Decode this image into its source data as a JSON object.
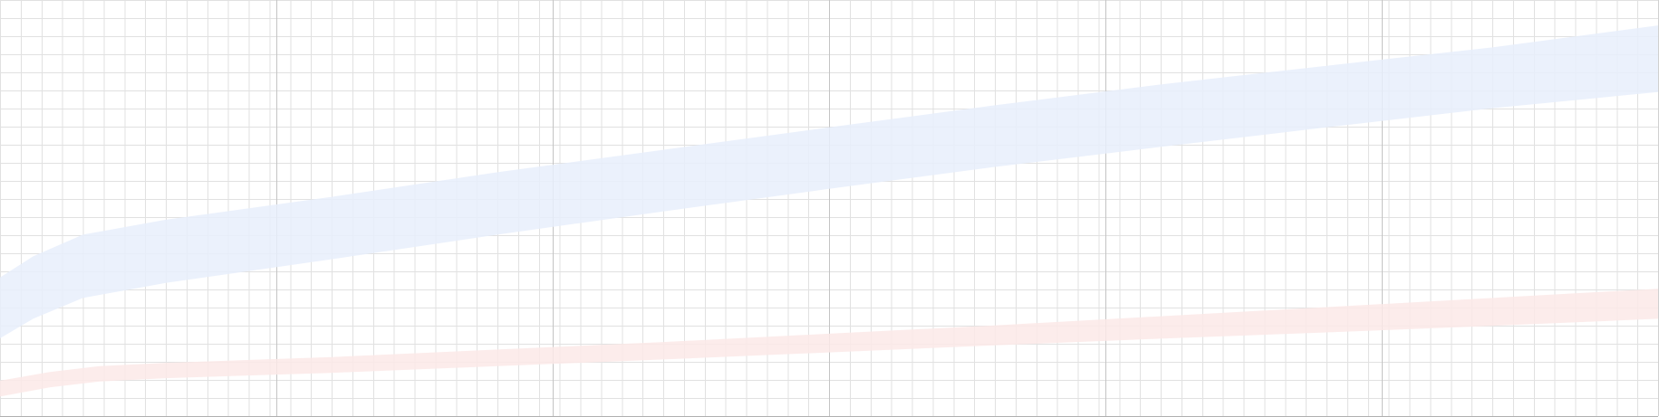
{
  "chart_data": {
    "type": "area",
    "title": "",
    "xlabel": "",
    "ylabel": "",
    "xlim": [
      0,
      1
    ],
    "ylim": [
      0,
      1
    ],
    "grid": {
      "visible": true,
      "minor_step": 0.0125,
      "major_step": 0.1667
    },
    "series": [
      {
        "color": "#e8effc",
        "x": [
          0.0,
          0.02,
          0.05,
          0.1,
          0.2,
          0.3,
          0.4,
          0.5,
          0.6,
          0.7,
          0.8,
          0.9,
          1.0
        ],
        "upper": [
          0.333,
          0.384,
          0.436,
          0.472,
          0.527,
          0.586,
          0.64,
          0.694,
          0.747,
          0.797,
          0.842,
          0.886,
          0.939
        ],
        "lower": [
          0.187,
          0.234,
          0.284,
          0.32,
          0.377,
          0.436,
          0.492,
          0.546,
          0.599,
          0.647,
          0.694,
          0.74,
          0.779
        ]
      },
      {
        "color": "#fce9e8",
        "x": [
          0.0,
          0.03,
          0.06,
          0.1,
          0.2,
          0.3,
          0.4,
          0.5,
          0.6,
          0.7,
          0.8,
          0.9,
          1.0
        ],
        "upper": [
          0.085,
          0.106,
          0.12,
          0.128,
          0.142,
          0.16,
          0.178,
          0.198,
          0.218,
          0.24,
          0.262,
          0.284,
          0.306
        ],
        "lower": [
          0.047,
          0.069,
          0.083,
          0.091,
          0.104,
          0.12,
          0.136,
          0.153,
          0.17,
          0.186,
          0.201,
          0.217,
          0.234
        ]
      }
    ]
  }
}
